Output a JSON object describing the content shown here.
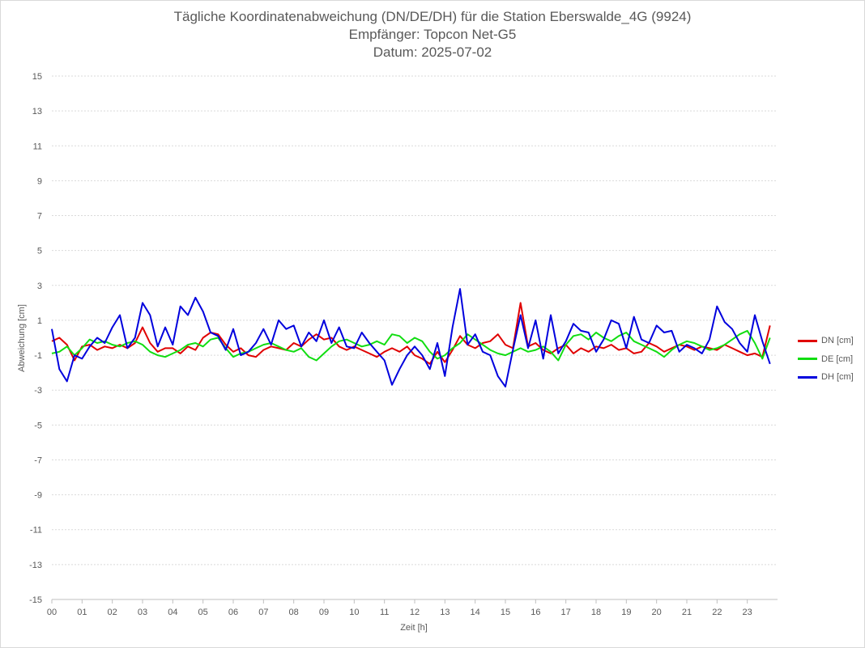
{
  "chart_data": {
    "type": "line",
    "title_lines": [
      "Tägliche Koordinatenabweichung (DN/DE/DH) für die Station Eberswalde_4G (9924)",
      "Empfänger: Topcon Net-G5",
      "Datum: 2025-07-02"
    ],
    "xlabel": "Zeit [h]",
    "ylabel": "Abweichung [cm]",
    "xlim": [
      0,
      24
    ],
    "ylim": [
      -15,
      15
    ],
    "x_ticks": [
      "00",
      "01",
      "02",
      "03",
      "04",
      "05",
      "06",
      "07",
      "08",
      "09",
      "10",
      "11",
      "12",
      "13",
      "14",
      "15",
      "16",
      "17",
      "18",
      "19",
      "20",
      "21",
      "22",
      "23"
    ],
    "y_ticks": [
      15,
      13,
      11,
      9,
      7,
      5,
      3,
      1,
      -1,
      -3,
      -5,
      -7,
      -9,
      -11,
      -13,
      -15
    ],
    "grid": true,
    "legend_position": "right",
    "x": [
      0.0,
      0.25,
      0.5,
      0.75,
      1.0,
      1.25,
      1.5,
      1.75,
      2.0,
      2.25,
      2.5,
      2.75,
      3.0,
      3.25,
      3.5,
      3.75,
      4.0,
      4.25,
      4.5,
      4.75,
      5.0,
      5.25,
      5.5,
      5.75,
      6.0,
      6.25,
      6.5,
      6.75,
      7.0,
      7.25,
      7.5,
      7.75,
      8.0,
      8.25,
      8.5,
      8.75,
      9.0,
      9.25,
      9.5,
      9.75,
      10.0,
      10.25,
      10.5,
      10.75,
      11.0,
      11.25,
      11.5,
      11.75,
      12.0,
      12.25,
      12.5,
      12.75,
      13.0,
      13.25,
      13.5,
      13.75,
      14.0,
      14.25,
      14.5,
      14.75,
      15.0,
      15.25,
      15.5,
      15.75,
      16.0,
      16.25,
      16.5,
      16.75,
      17.0,
      17.25,
      17.5,
      17.75,
      18.0,
      18.25,
      18.5,
      18.75,
      19.0,
      19.25,
      19.5,
      19.75,
      20.0,
      20.25,
      20.5,
      20.75,
      21.0,
      21.25,
      21.5,
      21.75,
      22.0,
      22.25,
      22.5,
      22.75,
      23.0,
      23.25,
      23.5,
      23.75
    ],
    "series": [
      {
        "name": "DN [cm]",
        "color": "#e00000",
        "values": [
          -0.2,
          0.0,
          -0.4,
          -1.3,
          -0.5,
          -0.4,
          -0.7,
          -0.5,
          -0.6,
          -0.4,
          -0.6,
          -0.3,
          0.6,
          -0.3,
          -0.8,
          -0.6,
          -0.6,
          -0.9,
          -0.5,
          -0.7,
          0.0,
          0.3,
          0.2,
          -0.4,
          -0.8,
          -0.6,
          -1.0,
          -1.1,
          -0.7,
          -0.5,
          -0.6,
          -0.7,
          -0.3,
          -0.5,
          -0.1,
          0.2,
          -0.1,
          0.0,
          -0.5,
          -0.7,
          -0.5,
          -0.7,
          -0.9,
          -1.1,
          -0.8,
          -0.6,
          -0.8,
          -0.5,
          -1.0,
          -1.2,
          -1.5,
          -0.8,
          -1.4,
          -0.7,
          0.1,
          -0.4,
          -0.6,
          -0.3,
          -0.2,
          0.2,
          -0.4,
          -0.6,
          2.0,
          -0.5,
          -0.3,
          -0.7,
          -0.9,
          -0.6,
          -0.4,
          -0.9,
          -0.6,
          -0.8,
          -0.5,
          -0.6,
          -0.4,
          -0.7,
          -0.6,
          -0.9,
          -0.8,
          -0.3,
          -0.5,
          -0.8,
          -0.6,
          -0.4,
          -0.5,
          -0.7,
          -0.5,
          -0.6,
          -0.7,
          -0.4,
          -0.6,
          -0.8,
          -1.0,
          -0.9,
          -1.1,
          0.7
        ]
      },
      {
        "name": "DE [cm]",
        "color": "#11dd11",
        "values": [
          -0.9,
          -0.8,
          -0.5,
          -1.0,
          -0.6,
          -0.1,
          -0.3,
          -0.2,
          -0.4,
          -0.5,
          -0.3,
          -0.2,
          -0.4,
          -0.8,
          -1.0,
          -1.1,
          -0.9,
          -0.7,
          -0.4,
          -0.3,
          -0.5,
          -0.1,
          0.0,
          -0.6,
          -1.1,
          -0.9,
          -0.8,
          -0.6,
          -0.4,
          -0.3,
          -0.5,
          -0.7,
          -0.8,
          -0.6,
          -1.1,
          -1.3,
          -0.9,
          -0.5,
          -0.2,
          -0.1,
          -0.3,
          -0.5,
          -0.4,
          -0.2,
          -0.4,
          0.2,
          0.1,
          -0.3,
          0.0,
          -0.2,
          -0.8,
          -1.2,
          -1.0,
          -0.6,
          -0.3,
          0.2,
          -0.1,
          -0.4,
          -0.7,
          -0.9,
          -1.0,
          -0.8,
          -0.6,
          -0.8,
          -0.7,
          -0.5,
          -0.8,
          -1.3,
          -0.4,
          0.1,
          0.2,
          -0.1,
          0.3,
          0.0,
          -0.2,
          0.1,
          0.3,
          -0.2,
          -0.4,
          -0.6,
          -0.8,
          -1.1,
          -0.7,
          -0.4,
          -0.2,
          -0.3,
          -0.5,
          -0.7,
          -0.6,
          -0.4,
          -0.1,
          0.2,
          0.4,
          -0.3,
          -1.2,
          0.0
        ]
      },
      {
        "name": "DH [cm]",
        "color": "#0000dd",
        "values": [
          0.5,
          -1.8,
          -2.5,
          -1.0,
          -1.2,
          -0.5,
          0.0,
          -0.3,
          0.6,
          1.3,
          -0.6,
          0.0,
          2.0,
          1.3,
          -0.5,
          0.6,
          -0.4,
          1.8,
          1.3,
          2.3,
          1.5,
          0.3,
          0.1,
          -0.7,
          0.5,
          -1.0,
          -0.8,
          -0.3,
          0.5,
          -0.4,
          1.0,
          0.5,
          0.7,
          -0.5,
          0.3,
          -0.2,
          1.0,
          -0.3,
          0.6,
          -0.5,
          -0.6,
          0.3,
          -0.3,
          -0.8,
          -1.3,
          -2.7,
          -1.8,
          -1.0,
          -0.5,
          -1.0,
          -1.8,
          -0.3,
          -2.2,
          0.6,
          2.8,
          -0.4,
          0.2,
          -0.8,
          -1.0,
          -2.2,
          -2.8,
          -0.7,
          1.3,
          -0.6,
          1.0,
          -1.2,
          1.3,
          -0.9,
          -0.2,
          0.8,
          0.4,
          0.3,
          -0.8,
          -0.1,
          1.0,
          0.8,
          -0.6,
          1.2,
          -0.1,
          -0.3,
          0.7,
          0.3,
          0.4,
          -0.8,
          -0.4,
          -0.6,
          -0.9,
          -0.1,
          1.8,
          0.9,
          0.5,
          -0.3,
          -0.8,
          1.3,
          -0.2,
          -1.5
        ]
      }
    ]
  }
}
